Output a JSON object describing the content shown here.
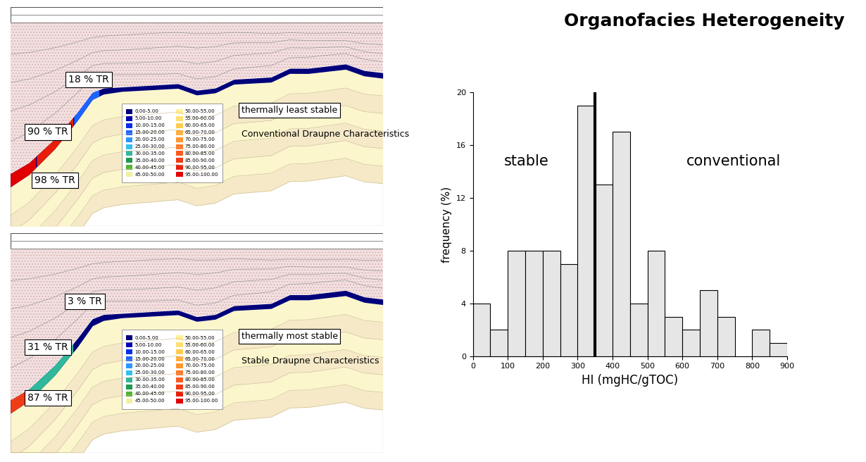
{
  "title": "Organofacies Heterogeneity",
  "cross_sections": [
    {
      "tr_labels": [
        {
          "value": 98,
          "label": "98 % TR"
        },
        {
          "value": 90,
          "label": "90 % TR"
        },
        {
          "value": 18,
          "label": "18 % TR"
        }
      ],
      "stability": "thermally least stable",
      "characteristics": "Conventional Draupne Characteristics"
    },
    {
      "tr_labels": [
        {
          "value": 87,
          "label": "87 % TR"
        },
        {
          "value": 31,
          "label": "31 % TR"
        },
        {
          "value": 3,
          "label": "3 % TR"
        }
      ],
      "stability": "thermally most stable",
      "characteristics": "Stable Draupne Characteristics"
    }
  ],
  "tr_legend": [
    "0.00-5.00",
    "5.00-10.00",
    "10.00-15.00",
    "15.00-20.00",
    "20.00-25.00",
    "25.00-30.00",
    "30.00-35.00",
    "35.00-40.00",
    "40.00-45.00",
    "45.00-50.00",
    "50.00-55.00",
    "55.00-60.00",
    "60.00-65.00",
    "65.00-70.00",
    "70.00-75.00",
    "75.00-80.00",
    "80.00-85.00",
    "85.00-90.00",
    "90.00-95.00",
    "95.00-100.00"
  ],
  "chart_data": {
    "type": "histogram",
    "bins": [
      0,
      50,
      100,
      150,
      200,
      250,
      300,
      350,
      400,
      450,
      500,
      550,
      600,
      650,
      700,
      750,
      800,
      850,
      900
    ],
    "counts": [
      4,
      2,
      8,
      8,
      8,
      7,
      19,
      13,
      17,
      4,
      8,
      3,
      2,
      5,
      3,
      0,
      2,
      1
    ],
    "color": "#e6e6e6",
    "x_label": "HI (mgHC/gTOC)",
    "y_label": "frequency (%)",
    "xlim": [
      0,
      900
    ],
    "ylim": [
      0,
      20
    ],
    "xticks": [
      0,
      100,
      200,
      300,
      400,
      500,
      600,
      700,
      800,
      900
    ],
    "yticks": [
      0,
      4,
      8,
      12,
      16,
      20
    ],
    "divider": 350,
    "annotations": [
      "stable",
      "conventional"
    ]
  }
}
